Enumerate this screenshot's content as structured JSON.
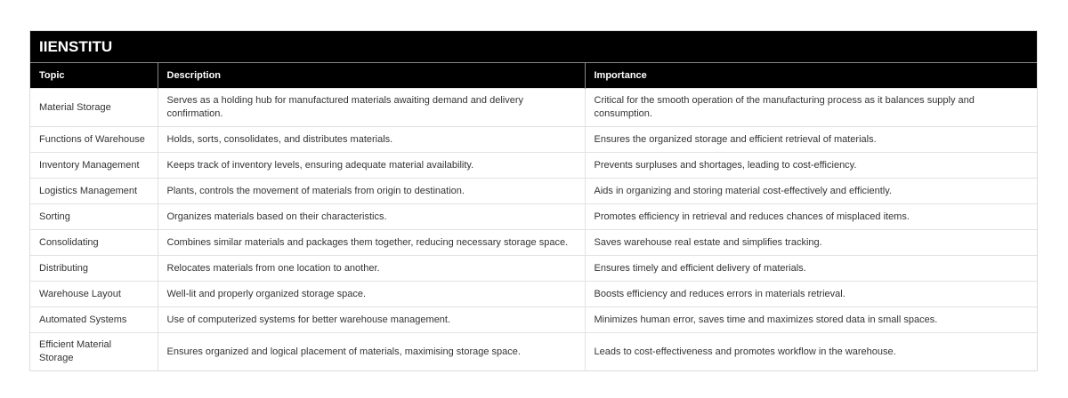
{
  "title": "IIENSTITU",
  "headers": [
    "Topic",
    "Description",
    "Importance"
  ],
  "rows": [
    [
      "Material Storage",
      "Serves as a holding hub for manufactured materials awaiting demand and delivery confirmation.",
      "Critical for the smooth operation of the manufacturing process as it balances supply and consumption."
    ],
    [
      "Functions of Warehouse",
      "Holds, sorts, consolidates, and distributes materials.",
      "Ensures the organized storage and efficient retrieval of materials."
    ],
    [
      "Inventory Management",
      "Keeps track of inventory levels, ensuring adequate material availability.",
      "Prevents surpluses and shortages, leading to cost-efficiency."
    ],
    [
      "Logistics Management",
      "Plants, controls the movement of materials from origin to destination.",
      "Aids in organizing and storing material cost-effectively and efficiently."
    ],
    [
      "Sorting",
      "Organizes materials based on their characteristics.",
      "Promotes efficiency in retrieval and reduces chances of misplaced items."
    ],
    [
      "Consolidating",
      "Combines similar materials and packages them together, reducing necessary storage space.",
      "Saves warehouse real estate and simplifies tracking."
    ],
    [
      "Distributing",
      "Relocates materials from one location to another.",
      "Ensures timely and efficient delivery of materials."
    ],
    [
      "Warehouse Layout",
      "Well-lit and properly organized storage space.",
      "Boosts efficiency and reduces errors in materials retrieval."
    ],
    [
      "Automated Systems",
      "Use of computerized systems for better warehouse management.",
      "Minimizes human error, saves time and maximizes stored data in small spaces."
    ],
    [
      "Efficient Material Storage",
      "Ensures organized and logical placement of materials, maximising storage space.",
      "Leads to cost-effectiveness and promotes workflow in the warehouse."
    ]
  ]
}
